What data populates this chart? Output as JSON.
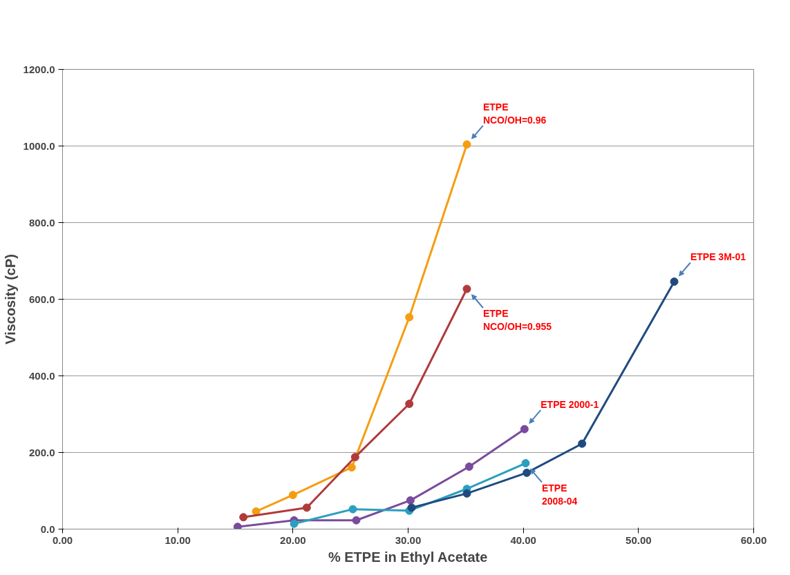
{
  "chart_data": {
    "type": "line",
    "xlabel": "% ETPE in Ethyl Acetate",
    "ylabel": "Viscosity (cP)",
    "xlim": [
      0,
      60
    ],
    "ylim": [
      0,
      1200
    ],
    "xticks": [
      {
        "value": 0,
        "label": "0.00"
      },
      {
        "value": 10,
        "label": "10.00"
      },
      {
        "value": 20,
        "label": "20.00"
      },
      {
        "value": 30,
        "label": "30.00"
      },
      {
        "value": 40,
        "label": "40.00"
      },
      {
        "value": 50,
        "label": "50.00"
      },
      {
        "value": 60,
        "label": "60.00"
      }
    ],
    "yticks": [
      {
        "value": 0,
        "label": "0.0"
      },
      {
        "value": 200,
        "label": "200.0"
      },
      {
        "value": 400,
        "label": "400.0"
      },
      {
        "value": 600,
        "label": "600.0"
      },
      {
        "value": 800,
        "label": "800.0"
      },
      {
        "value": 1000,
        "label": "1000.0"
      },
      {
        "value": 1200,
        "label": "1200.0"
      }
    ],
    "grid": "y",
    "marker": "circle",
    "line_style": "solid",
    "series": [
      {
        "color": "#f59d10",
        "x": [
          16.8,
          20.0,
          25.1,
          30.1,
          35.1
        ],
        "values": [
          46,
          89,
          161,
          553,
          1004
        ]
      },
      {
        "color": "#b03a3a",
        "x": [
          15.7,
          21.2,
          25.4,
          30.1,
          35.1
        ],
        "values": [
          31,
          56,
          188,
          327,
          627
        ]
      },
      {
        "color": "#7a4a9c",
        "x": [
          15.2,
          20.1,
          25.5,
          30.2,
          35.3,
          40.1
        ],
        "values": [
          6,
          23,
          23,
          75,
          163,
          261
        ]
      },
      {
        "color": "#2a9fbf",
        "x": [
          20.1,
          25.2,
          30.1,
          35.1,
          40.2
        ],
        "values": [
          14,
          52,
          48,
          105,
          172
        ]
      },
      {
        "color": "#1f4a80",
        "x": [
          30.3,
          35.1,
          40.3,
          45.1,
          53.1
        ],
        "values": [
          56,
          93,
          147,
          223,
          646
        ]
      }
    ],
    "annotations": [
      {
        "text": "ETPE\nNCO/OH=0.96",
        "x": 35.1,
        "y": 1004
      },
      {
        "text": "ETPE\nNCO/OH=0.955",
        "x": 35.1,
        "y": 627
      },
      {
        "text": "ETPE 3M-01",
        "x": 53.1,
        "y": 646
      },
      {
        "text": "ETPE\n2008-04",
        "x": 40.2,
        "y": 172
      },
      {
        "text": "ETPE 2000-1",
        "x": 40.1,
        "y": 261
      }
    ]
  }
}
